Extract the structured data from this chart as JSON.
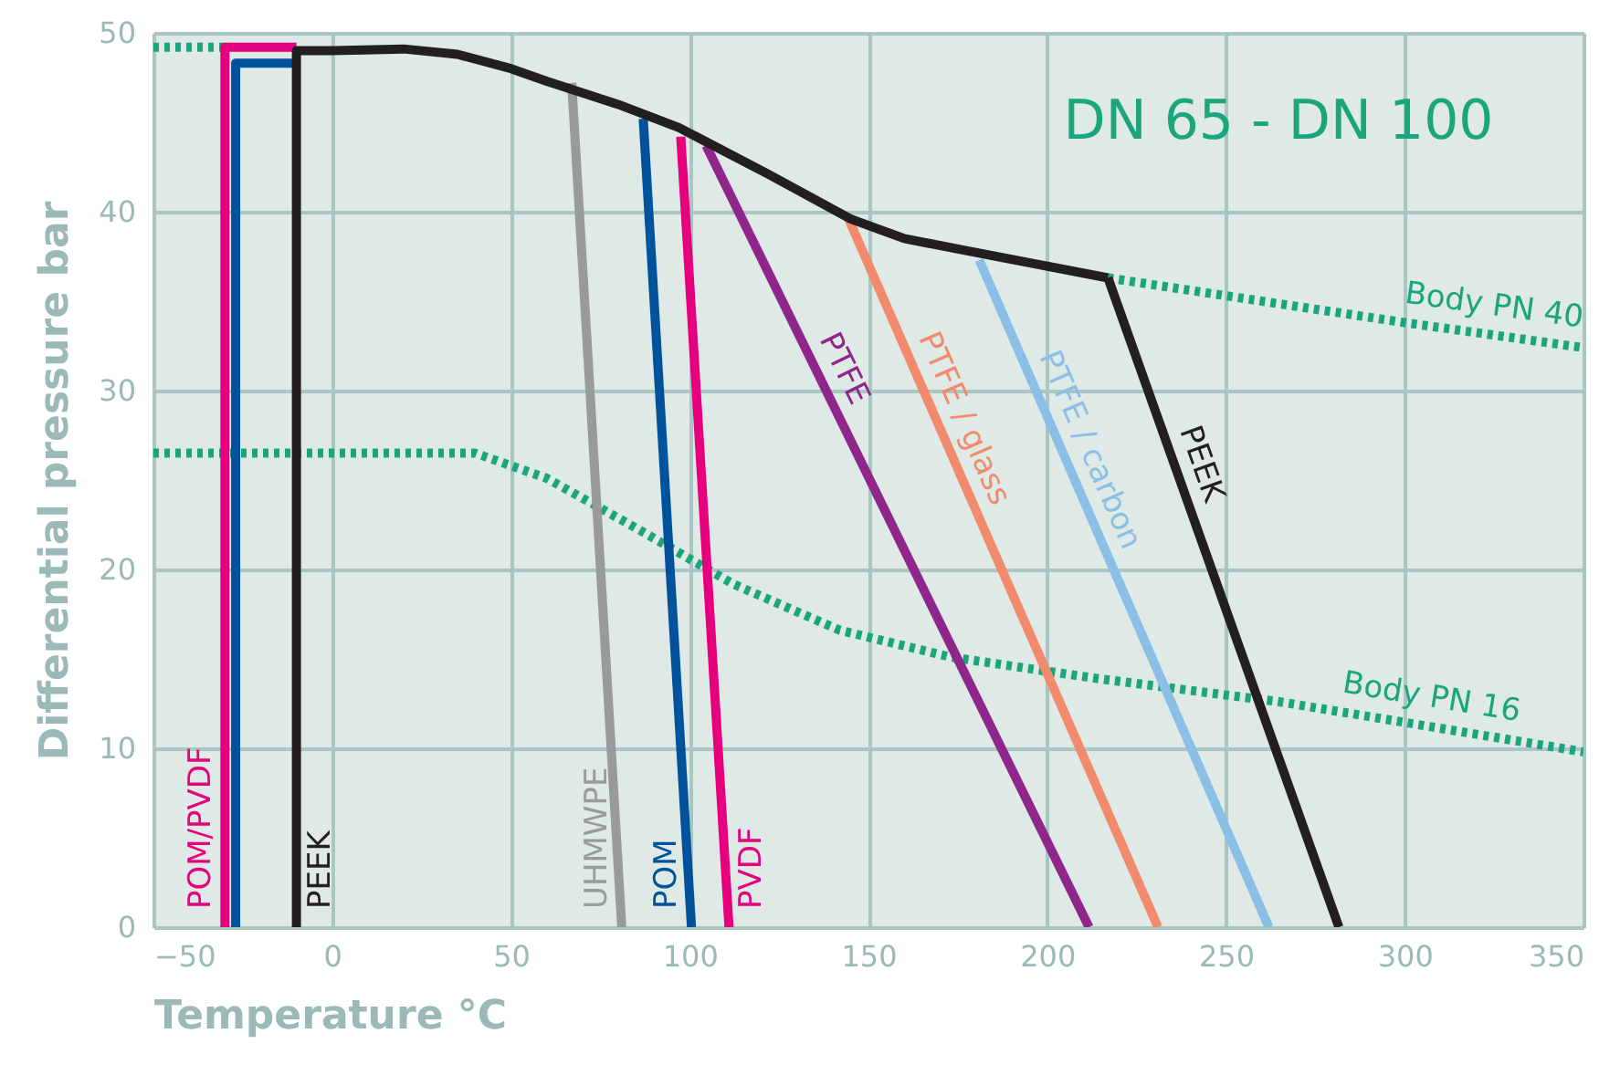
{
  "chart_data": {
    "type": "line",
    "title": "DN 65 - DN 100",
    "xlabel": "Temperature °C",
    "ylabel": "Differential pressure bar",
    "xlim": [
      -50,
      350
    ],
    "xticks": [
      -50,
      0,
      50,
      100,
      150,
      200,
      250,
      300,
      350
    ],
    "ylim": [
      0,
      50
    ],
    "yticks": [
      0,
      10,
      20,
      30,
      40,
      50
    ],
    "grid": true,
    "marker": "none",
    "series": [
      {
        "name": "Body PN 40",
        "color": "#1aa57a",
        "line_style": "dotted",
        "x": [
          -50,
          -30,
          100,
          217,
          260,
          300,
          350
        ],
        "values": [
          49.2,
          49.2,
          null,
          36.3,
          35.0,
          33.8,
          32.4
        ]
      },
      {
        "name": "Body PN 16",
        "color": "#1aa57a",
        "line_style": "dotted",
        "x": [
          -50,
          40,
          60,
          86,
          112,
          142,
          173,
          214,
          265,
          350
        ],
        "values": [
          26.5,
          26.5,
          25.1,
          22.2,
          19.2,
          16.6,
          15.1,
          13.9,
          12.6,
          9.8
        ]
      },
      {
        "name": "UHMWPE",
        "color": "#999a9c",
        "line_style": "solid",
        "x": [
          67,
          81
        ],
        "values": [
          47.2,
          0
        ]
      },
      {
        "name": "POM",
        "color": "#00529b",
        "line_style": "solid",
        "x": [
          87,
          100.5
        ],
        "values": [
          45.2,
          0
        ]
      },
      {
        "name": "PVDF",
        "color": "#e6007e",
        "line_style": "solid",
        "x": [
          97.5,
          111
        ],
        "values": [
          44.2,
          0
        ]
      },
      {
        "name": "PTFE",
        "color": "#8e268c",
        "line_style": "solid",
        "x": [
          104.6,
          211.7
        ],
        "values": [
          43.7,
          0
        ]
      },
      {
        "name": "PTFE / glass",
        "color": "#f28a6e",
        "line_style": "solid",
        "x": [
          144,
          231
        ],
        "values": [
          39.8,
          0
        ]
      },
      {
        "name": "PTFE / carbon",
        "color": "#8cbfe6",
        "line_style": "solid",
        "x": [
          181,
          262
        ],
        "values": [
          37.3,
          0
        ]
      },
      {
        "name": "POM/PVDF",
        "color": "#e6007e",
        "line_style": "solid",
        "x": [
          -30,
          -30,
          -10
        ],
        "values": [
          0,
          49.2,
          49.2
        ]
      },
      {
        "color": "#00529b",
        "line_style": "solid",
        "x": [
          -27,
          -27,
          -10
        ],
        "values": [
          0,
          48.3,
          48.3
        ]
      },
      {
        "name": "PEEK",
        "color": "#231f20",
        "line_style": "solid",
        "x": [
          -10,
          -10,
          0,
          20,
          35,
          50,
          60,
          80,
          97,
          122,
          145,
          160,
          178,
          217
        ],
        "values": [
          0,
          49,
          49,
          49.1,
          48.8,
          48,
          47.3,
          46,
          44.7,
          42.1,
          39.6,
          38.5,
          37.8,
          36.3
        ]
      },
      {
        "name": "PEEK",
        "color": "#231f20",
        "line_style": "solid",
        "x": [
          217,
          281.6
        ],
        "values": [
          36.3,
          0
        ]
      }
    ]
  }
}
